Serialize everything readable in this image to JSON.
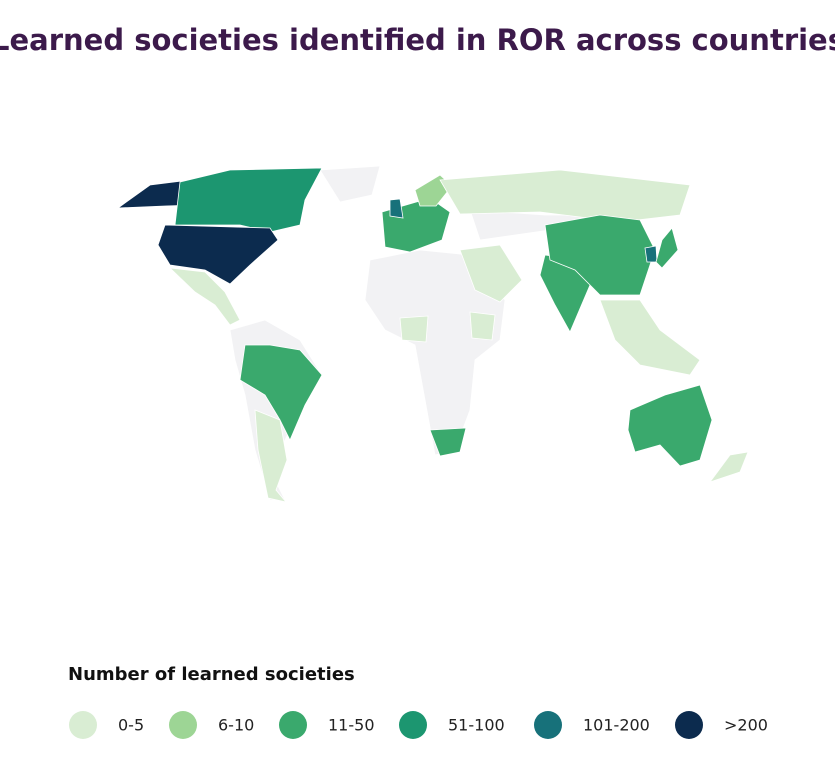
{
  "title": "Learned societies identified in ROR across countries",
  "map": {
    "no_data_color": "#f2f2f4"
  },
  "legend": {
    "title": "Number of learned societies",
    "items": [
      {
        "label": "0-5",
        "color": "#d9edd3"
      },
      {
        "label": "6-10",
        "color": "#9dd595"
      },
      {
        "label": "11-50",
        "color": "#3aa96d"
      },
      {
        "label": "51-100",
        "color": "#1c9670"
      },
      {
        "label": "101-200",
        "color": "#17717a"
      },
      {
        "label": ">200",
        "color": "#0c2b4e"
      }
    ]
  }
}
